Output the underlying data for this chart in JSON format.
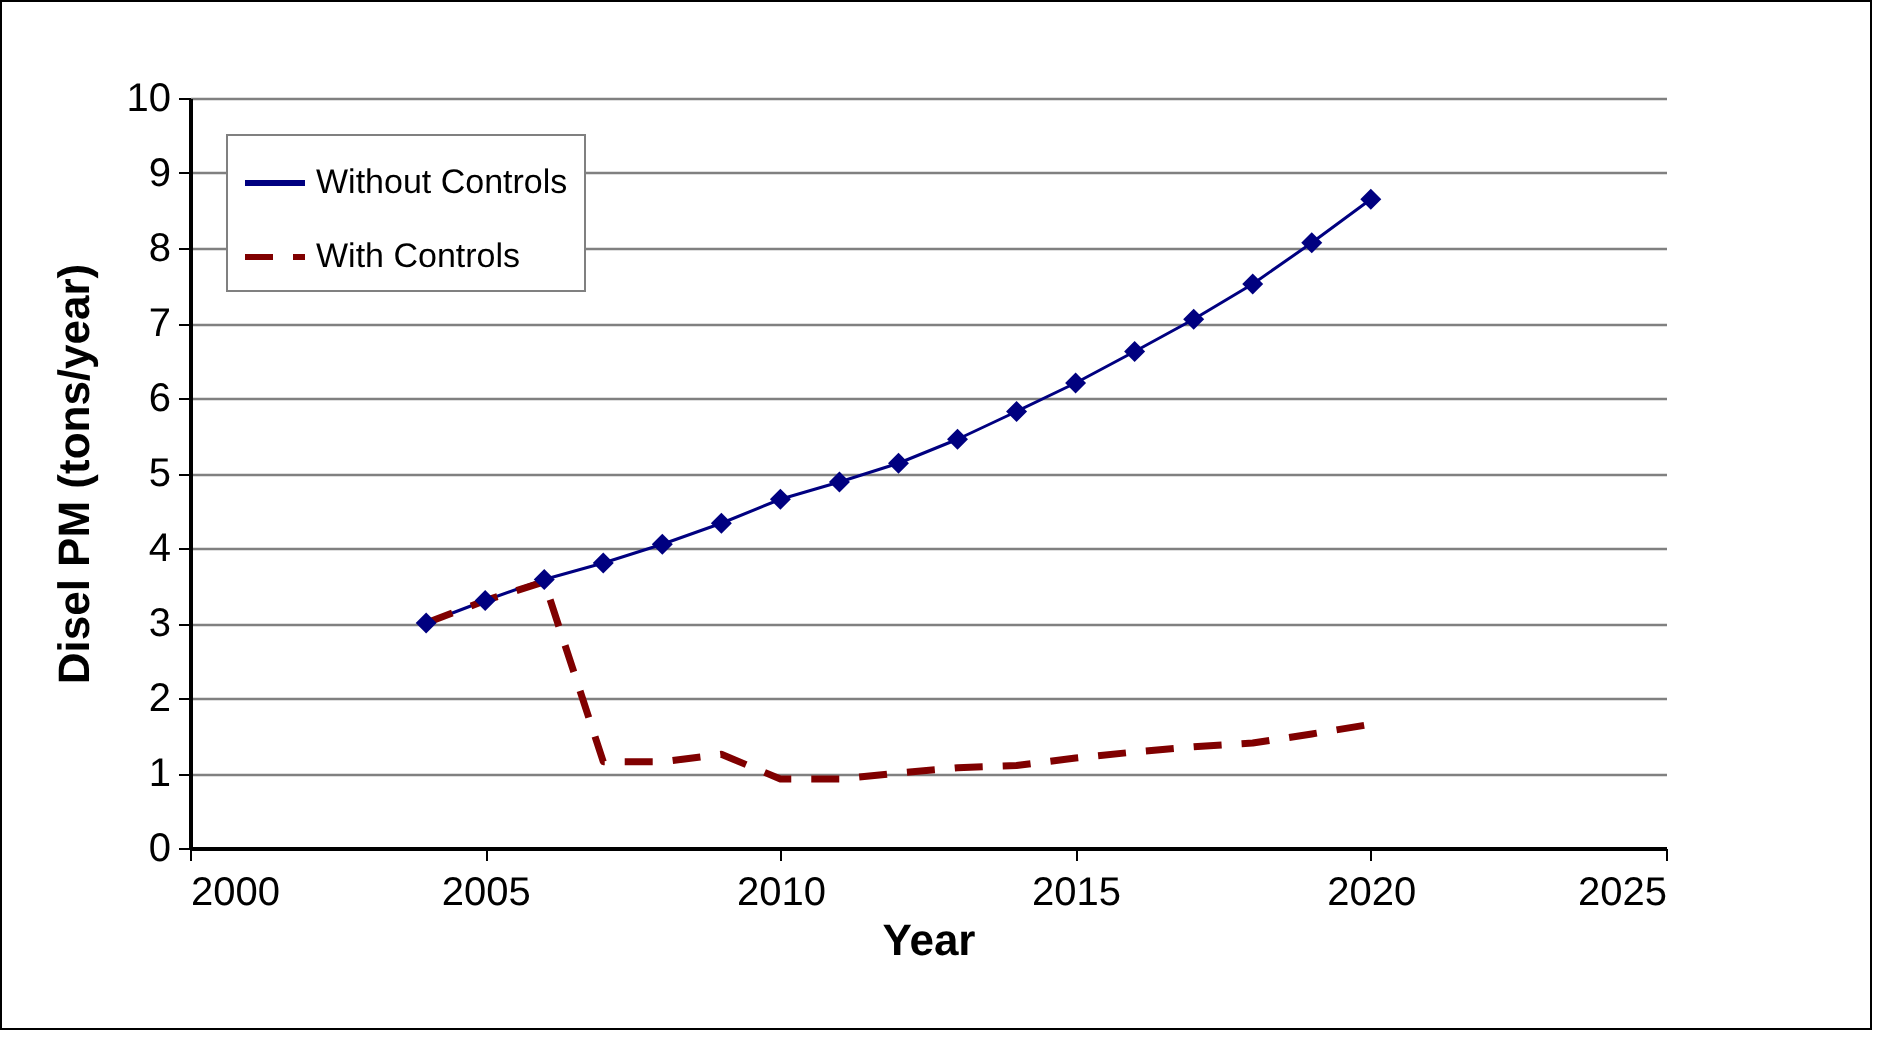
{
  "chart_data": {
    "type": "line",
    "xlabel": "Year",
    "ylabel": "Disel PM (tons/year)",
    "x": [
      2004,
      2005,
      2006,
      2007,
      2008,
      2009,
      2010,
      2011,
      2012,
      2013,
      2014,
      2015,
      2016,
      2017,
      2018,
      2019,
      2020
    ],
    "series": [
      {
        "name": "Without Controls",
        "color": "#000080",
        "marker": "diamond",
        "line_style": "solid",
        "values": [
          3.0,
          3.3,
          3.58,
          3.8,
          4.05,
          4.33,
          4.65,
          4.88,
          5.13,
          5.45,
          5.82,
          6.2,
          6.62,
          7.05,
          7.52,
          8.07,
          8.65
        ]
      },
      {
        "name": "With Controls",
        "color": "#800000",
        "marker": "none",
        "line_style": "dashed",
        "values": [
          3.0,
          3.3,
          3.55,
          1.15,
          1.15,
          1.25,
          0.92,
          0.92,
          1.0,
          1.07,
          1.1,
          1.2,
          1.28,
          1.35,
          1.4,
          1.52,
          1.65
        ]
      }
    ],
    "xlim": [
      2000,
      2025
    ],
    "xticks": [
      2000,
      2005,
      2010,
      2015,
      2020,
      2025
    ],
    "ylim": [
      0,
      10
    ],
    "yticks": [
      0,
      1,
      2,
      3,
      4,
      5,
      6,
      7,
      8,
      9,
      10
    ],
    "grid": "y",
    "legend": "top left"
  }
}
